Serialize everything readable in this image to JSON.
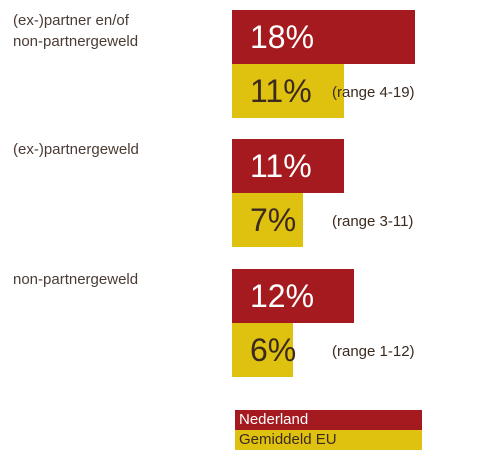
{
  "colors": {
    "nederland": "#a51a1f",
    "eu": "#dfc10f"
  },
  "chart_data": {
    "type": "bar",
    "orientation": "horizontal",
    "categories": [
      "(ex-)partner en/of\nnon-partnergeweld",
      "(ex-)partnergeweld",
      "non-partnergeweld"
    ],
    "series": [
      {
        "name": "Nederland",
        "values": [
          18,
          11,
          12
        ],
        "labels": [
          "18%",
          "11%",
          "12%"
        ]
      },
      {
        "name": "Gemiddeld EU",
        "values": [
          11,
          7,
          6
        ],
        "labels": [
          "11%",
          "7%",
          "6%"
        ],
        "ranges": [
          "(range 4-19)",
          "(range 3-11)",
          "(range 1-12)"
        ]
      }
    ],
    "legend": {
      "position": "bottom",
      "entries": [
        "Nederland",
        "Gemiddeld EU"
      ]
    },
    "grid": false,
    "axes_visible": false
  }
}
